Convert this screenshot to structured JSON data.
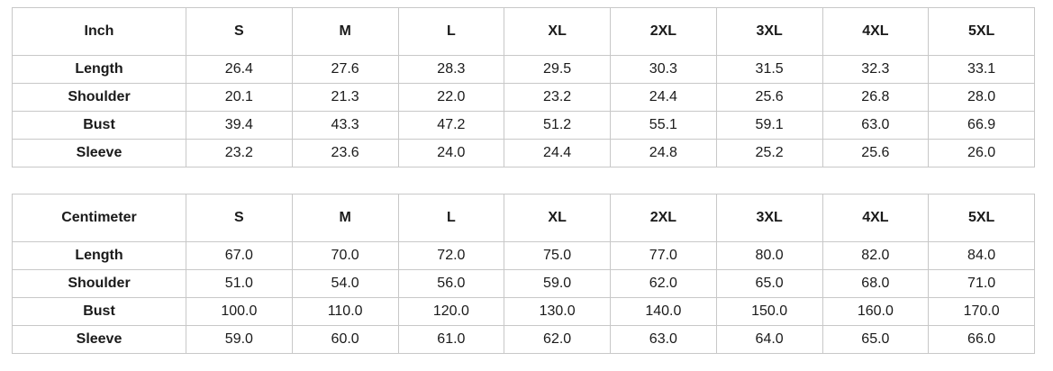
{
  "tables": [
    {
      "unit_label": "Inch",
      "sizes": [
        "S",
        "M",
        "L",
        "XL",
        "2XL",
        "3XL",
        "4XL",
        "5XL"
      ],
      "rows": [
        {
          "label": "Length",
          "values": [
            "26.4",
            "27.6",
            "28.3",
            "29.5",
            "30.3",
            "31.5",
            "32.3",
            "33.1"
          ]
        },
        {
          "label": "Shoulder",
          "values": [
            "20.1",
            "21.3",
            "22.0",
            "23.2",
            "24.4",
            "25.6",
            "26.8",
            "28.0"
          ]
        },
        {
          "label": "Bust",
          "values": [
            "39.4",
            "43.3",
            "47.2",
            "51.2",
            "55.1",
            "59.1",
            "63.0",
            "66.9"
          ]
        },
        {
          "label": "Sleeve",
          "values": [
            "23.2",
            "23.6",
            "24.0",
            "24.4",
            "24.8",
            "25.2",
            "25.6",
            "26.0"
          ]
        }
      ]
    },
    {
      "unit_label": "Centimeter",
      "sizes": [
        "S",
        "M",
        "L",
        "XL",
        "2XL",
        "3XL",
        "4XL",
        "5XL"
      ],
      "rows": [
        {
          "label": "Length",
          "values": [
            "67.0",
            "70.0",
            "72.0",
            "75.0",
            "77.0",
            "80.0",
            "82.0",
            "84.0"
          ]
        },
        {
          "label": "Shoulder",
          "values": [
            "51.0",
            "54.0",
            "56.0",
            "59.0",
            "62.0",
            "65.0",
            "68.0",
            "71.0"
          ]
        },
        {
          "label": "Bust",
          "values": [
            "100.0",
            "110.0",
            "120.0",
            "130.0",
            "140.0",
            "150.0",
            "160.0",
            "170.0"
          ]
        },
        {
          "label": "Sleeve",
          "values": [
            "59.0",
            "60.0",
            "61.0",
            "62.0",
            "63.0",
            "64.0",
            "65.0",
            "66.0"
          ]
        }
      ]
    }
  ],
  "colors": {
    "border": "#c8c8c8",
    "text": "#1a1a1a",
    "background": "#ffffff"
  }
}
